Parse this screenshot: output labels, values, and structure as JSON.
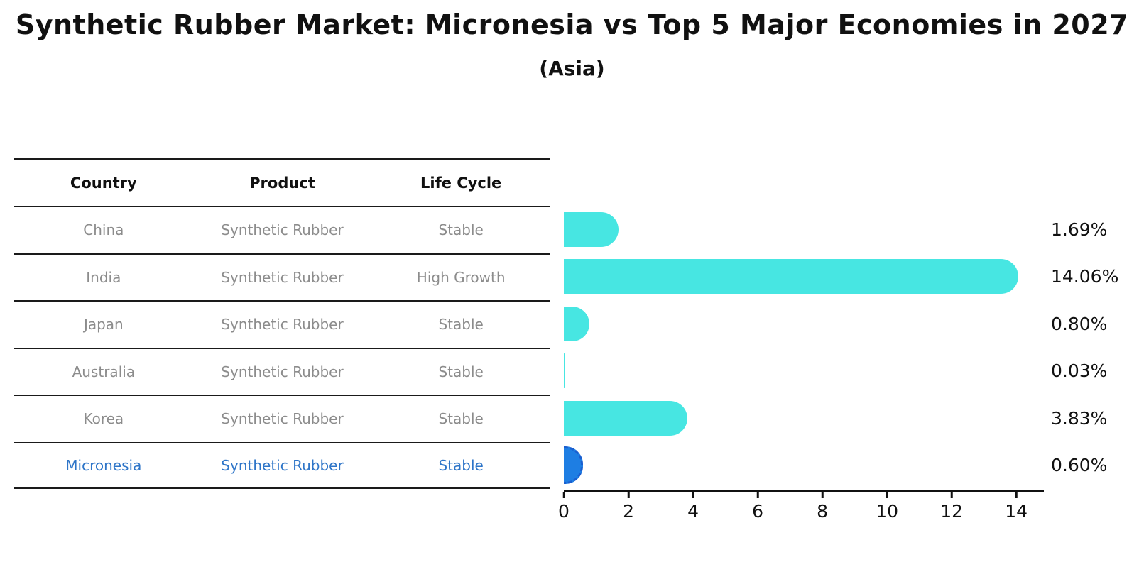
{
  "title": "Synthetic Rubber Market: Micronesia vs Top 5 Major Economies in 2027",
  "subtitle": "(Asia)",
  "table": {
    "headers": [
      "Country",
      "Product",
      "Life Cycle"
    ],
    "rows": [
      {
        "country": "China",
        "product": "Synthetic Rubber",
        "life_cycle": "Stable",
        "highlight": false
      },
      {
        "country": "India",
        "product": "Synthetic Rubber",
        "life_cycle": "High Growth",
        "highlight": false
      },
      {
        "country": "Japan",
        "product": "Synthetic Rubber",
        "life_cycle": "Stable",
        "highlight": false
      },
      {
        "country": "Australia",
        "product": "Synthetic Rubber",
        "life_cycle": "Stable",
        "highlight": false
      },
      {
        "country": "Korea",
        "product": "Synthetic Rubber",
        "life_cycle": "Stable",
        "highlight": false
      },
      {
        "country": "Micronesia",
        "product": "Synthetic Rubber",
        "life_cycle": "Stable",
        "highlight": true
      }
    ]
  },
  "chart_data": {
    "type": "bar",
    "orientation": "horizontal",
    "title": "Synthetic Rubber Market: Micronesia vs Top 5 Major Economies in 2027",
    "subtitle": "(Asia)",
    "categories": [
      "China",
      "India",
      "Japan",
      "Australia",
      "Korea",
      "Micronesia"
    ],
    "values": [
      1.69,
      14.06,
      0.8,
      0.03,
      3.83,
      0.6
    ],
    "value_labels": [
      "1.69%",
      "14.06%",
      "0.80%",
      "0.03%",
      "3.83%",
      "0.60%"
    ],
    "x_ticks": [
      0,
      2,
      4,
      6,
      8,
      10,
      12,
      14
    ],
    "xlim": [
      0,
      14.81
    ],
    "grid": false,
    "legend": false,
    "colors": {
      "bar": "#47e6e2",
      "highlight_bar": "#1e7ee3",
      "highlight_border": "#1a5fd0",
      "highlight_text": "#2e75c8",
      "text": "#111111",
      "muted_text": "#8c8c8c"
    },
    "highlight_index": 5
  }
}
